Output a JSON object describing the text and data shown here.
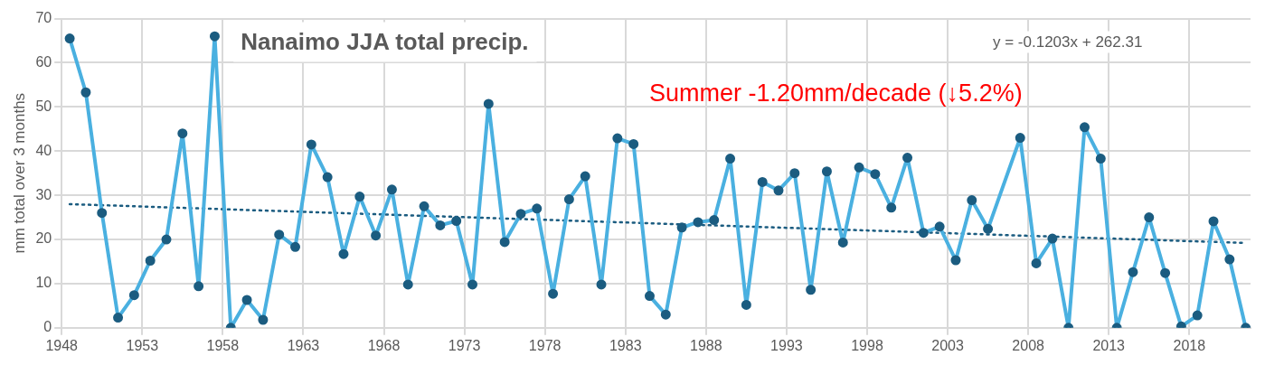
{
  "chart_data": {
    "type": "line",
    "title": "Nanaimo JJA total precip.",
    "ylabel": "mm total over 3 months",
    "annotations": [
      "y = -0.1203x + 262.31",
      "Summer -1.20mm/decade (↓5.2%)"
    ],
    "xlim": [
      1947.5,
      2021.3
    ],
    "xticks": [
      {
        "value": 1947.5,
        "label": "1948"
      },
      {
        "value": 1952.5,
        "label": "1953"
      },
      {
        "value": 1957.5,
        "label": "1958"
      },
      {
        "value": 1962.5,
        "label": "1963"
      },
      {
        "value": 1967.5,
        "label": "1968"
      },
      {
        "value": 1972.5,
        "label": "1973"
      },
      {
        "value": 1977.5,
        "label": "1978"
      },
      {
        "value": 1982.5,
        "label": "1983"
      },
      {
        "value": 1987.5,
        "label": "1988"
      },
      {
        "value": 1992.5,
        "label": "1993"
      },
      {
        "value": 1997.5,
        "label": "1998"
      },
      {
        "value": 2002.5,
        "label": "2003"
      },
      {
        "value": 2007.5,
        "label": "2008"
      },
      {
        "value": 2012.5,
        "label": "2013"
      },
      {
        "value": 2017.5,
        "label": "2018"
      }
    ],
    "ylim": [
      0,
      70
    ],
    "yticks": [
      0,
      10,
      20,
      30,
      40,
      50,
      60,
      70
    ],
    "grid": true,
    "marker": "circle",
    "series": [
      {
        "color": "#4ab0e0",
        "x": [
          1948,
          1949,
          1950,
          1951,
          1952,
          1953,
          1954,
          1955,
          1956,
          1957,
          1958,
          1959,
          1960,
          1961,
          1962,
          1963,
          1964,
          1965,
          1966,
          1967,
          1968,
          1969,
          1970,
          1971,
          1972,
          1973,
          1974,
          1975,
          1976,
          1977,
          1978,
          1979,
          1980,
          1981,
          1982,
          1983,
          1984,
          1985,
          1986,
          1987,
          1988,
          1989,
          1990,
          1991,
          1992,
          1993,
          1994,
          1995,
          1996,
          1997,
          1998,
          1999,
          2000,
          2001,
          2002,
          2003,
          2004,
          2005,
          2007,
          2008,
          2009,
          2010,
          2011,
          2012,
          2013,
          2014,
          2015,
          2016,
          2017,
          2018,
          2019,
          2020,
          2021
        ],
        "values": [
          65.5,
          53.3,
          26,
          2.3,
          7.4,
          15.2,
          20,
          44,
          9.4,
          66,
          0,
          6.3,
          1.8,
          21.1,
          18.3,
          41.5,
          34.1,
          16.7,
          29.7,
          20.9,
          31.3,
          9.8,
          27.5,
          23.2,
          24.2,
          9.8,
          50.7,
          19.4,
          25.8,
          27,
          7.7,
          29.1,
          34.3,
          9.8,
          42.9,
          41.6,
          7.2,
          3,
          22.7,
          23.9,
          24.4,
          38.3,
          5.2,
          33,
          31.1,
          35,
          8.6,
          35.4,
          19.3,
          36.3,
          34.8,
          27.2,
          38.5,
          21.5,
          22.9,
          15.3,
          28.9,
          22.4,
          43,
          14.6,
          20.2,
          0,
          45.4,
          38.3,
          0,
          12.6,
          25,
          12.4,
          0.3,
          2.8,
          24.1,
          15.5,
          0
        ]
      },
      {
        "type": "line",
        "color": "#1b5c80",
        "line_style": "dotted",
        "marker": "none",
        "x": [
          1948,
          2021
        ],
        "values": [
          28,
          19.2
        ]
      }
    ]
  }
}
